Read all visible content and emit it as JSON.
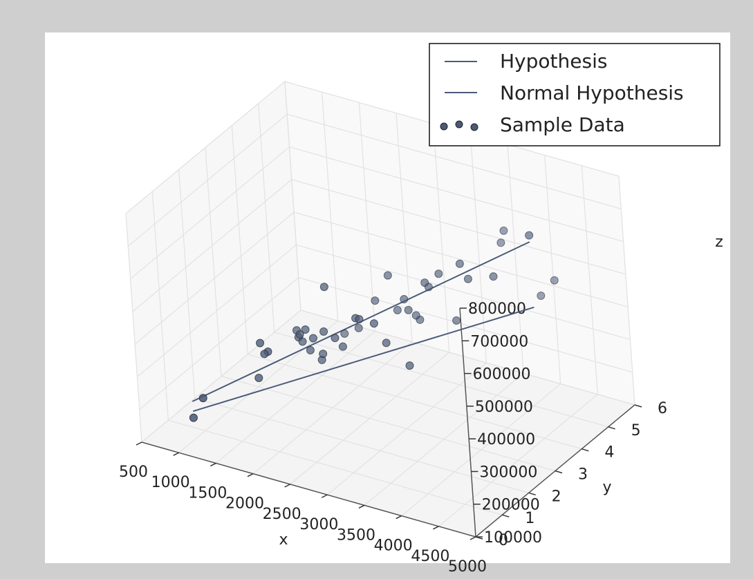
{
  "chart_data": {
    "type": "scatter",
    "projection": "3d",
    "title": "",
    "xlabel": "x",
    "ylabel": "y",
    "zlabel": "z",
    "grid": true,
    "legend_position": "top-right",
    "xlim": [
      500,
      5000
    ],
    "ylim": [
      0,
      6
    ],
    "zlim": [
      100000,
      800000
    ],
    "x_ticks": [
      "500",
      "1000",
      "1500",
      "2000",
      "2500",
      "3000",
      "3500",
      "4000",
      "4500",
      "5000"
    ],
    "y_ticks": [
      "0",
      "1",
      "2",
      "3",
      "4",
      "5",
      "6"
    ],
    "z_ticks": [
      "100000",
      "200000",
      "300000",
      "400000",
      "500000",
      "600000",
      "700000",
      "800000"
    ],
    "legend": [
      "Hypothesis",
      "Normal Hypothesis",
      "Sample Data"
    ],
    "series": [
      {
        "name": "Hypothesis",
        "kind": "line",
        "color": "#4a5a78",
        "points": [
          [
            850,
            1,
            180000
          ],
          [
            4480,
            4,
            700000
          ]
        ]
      },
      {
        "name": "Normal Hypothesis",
        "kind": "line",
        "color": "#4a5a78",
        "points": [
          [
            850,
            1,
            150000
          ],
          [
            4480,
            4,
            500000
          ]
        ]
      },
      {
        "name": "Sample Data",
        "kind": "scatter",
        "color": "#4a5a78",
        "points": [
          [
            1000,
            1,
            200000
          ],
          [
            1400,
            2,
            220000
          ],
          [
            1900,
            3,
            240000
          ],
          [
            1600,
            3,
            290000
          ],
          [
            1450,
            2,
            330000
          ],
          [
            1850,
            4,
            250000
          ],
          [
            1800,
            3,
            300000
          ],
          [
            1550,
            2,
            310000
          ],
          [
            1700,
            3,
            320000
          ],
          [
            1650,
            3,
            280000
          ],
          [
            1750,
            3,
            260000
          ],
          [
            1500,
            2,
            300000
          ],
          [
            1580,
            3,
            310000
          ],
          [
            1620,
            3,
            300000
          ],
          [
            1950,
            3,
            330000
          ],
          [
            1920,
            3,
            260000
          ],
          [
            2050,
            4,
            280000
          ],
          [
            2100,
            3,
            320000
          ],
          [
            2000,
            3,
            470000
          ],
          [
            2200,
            3,
            300000
          ],
          [
            2300,
            4,
            380000
          ],
          [
            2400,
            3,
            400000
          ],
          [
            2500,
            4,
            470000
          ],
          [
            2450,
            3,
            400000
          ],
          [
            2600,
            4,
            370000
          ],
          [
            2650,
            3,
            400000
          ],
          [
            2700,
            4,
            410000
          ],
          [
            2750,
            4,
            380000
          ],
          [
            2800,
            3,
            350000
          ],
          [
            2900,
            4,
            360000
          ],
          [
            2850,
            4,
            370000
          ],
          [
            3000,
            4,
            480000
          ],
          [
            3050,
            4,
            470000
          ],
          [
            3100,
            3,
            300000
          ],
          [
            3200,
            4,
            520000
          ],
          [
            3400,
            4,
            390000
          ],
          [
            3500,
            4,
            570000
          ],
          [
            3600,
            4,
            530000
          ],
          [
            3700,
            5,
            580000
          ],
          [
            3750,
            5,
            620000
          ],
          [
            3950,
            4,
            560000
          ],
          [
            4200,
            5,
            450000
          ],
          [
            4400,
            5,
            510000
          ],
          [
            4480,
            4,
            720000
          ],
          [
            850,
            1,
            130000
          ]
        ]
      }
    ]
  }
}
